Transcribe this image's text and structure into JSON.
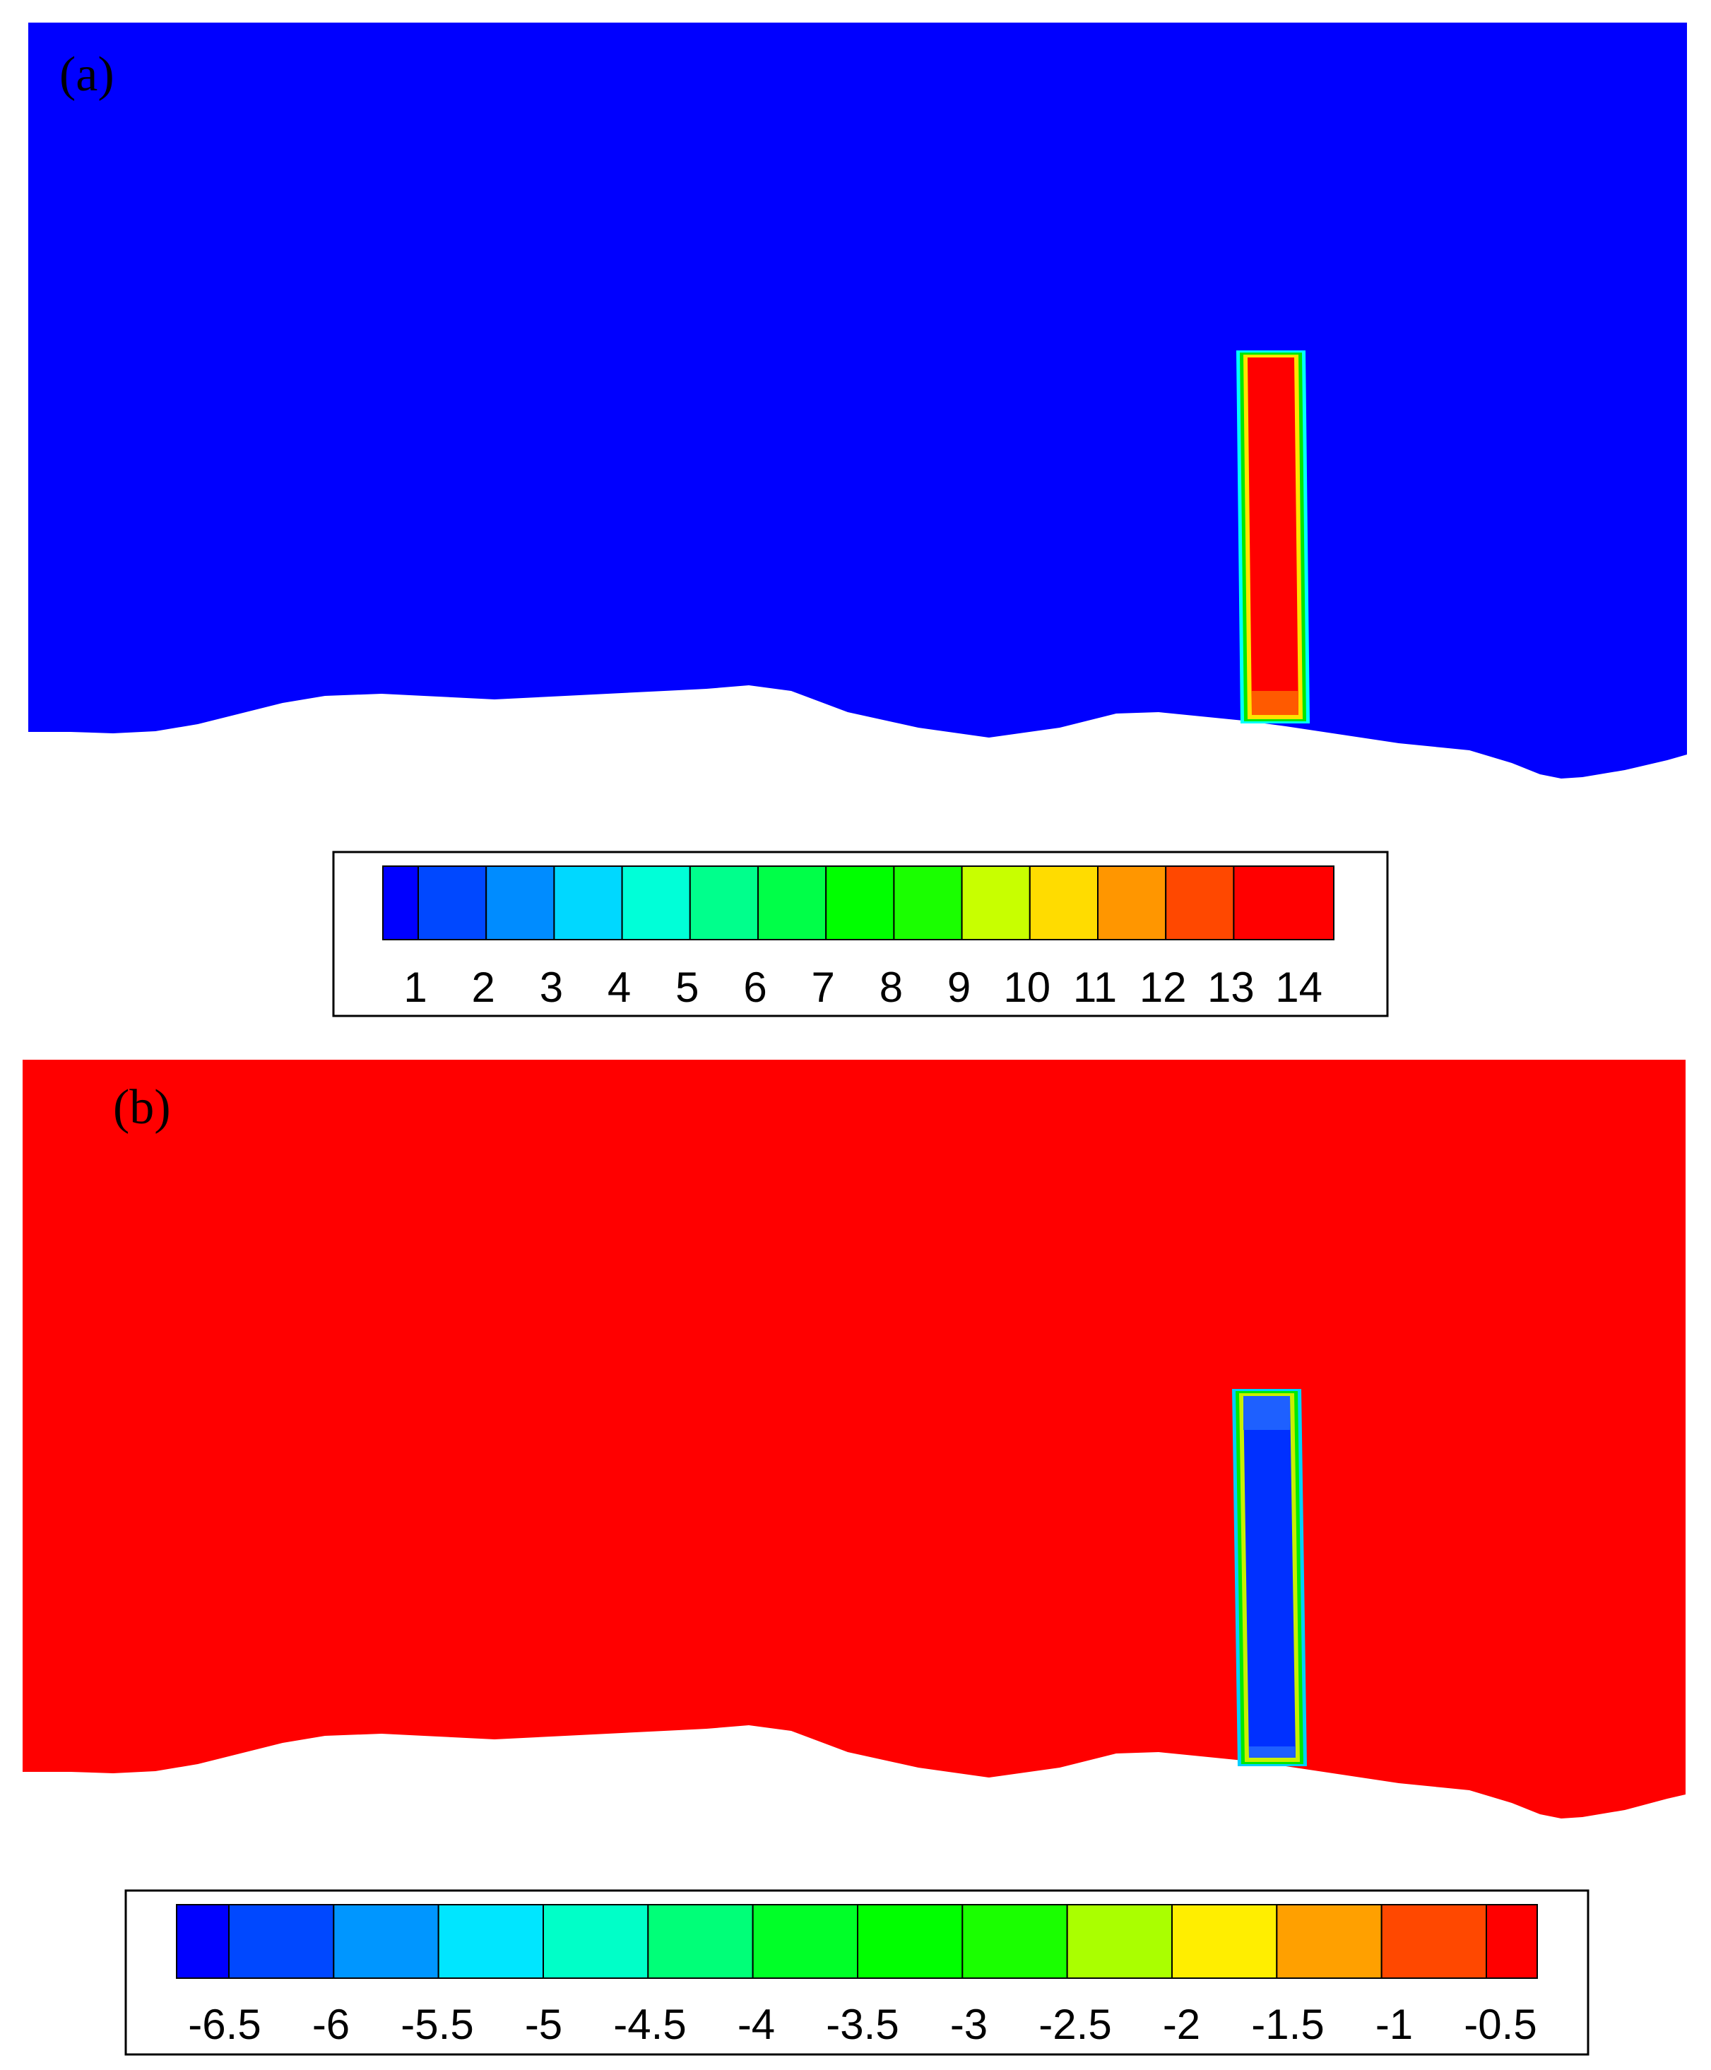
{
  "figure": {
    "panels": [
      {
        "label": "(a)",
        "field_color": "#0000ff",
        "pillar_color": "#ff0000",
        "pillar_rim_colors": [
          "#ffe400",
          "#00e800",
          "#00ffff"
        ],
        "pillar_base_color": "#ff5a00"
      },
      {
        "label": "(b)",
        "field_color": "#ff0000",
        "pillar_color": "#0030ff",
        "pillar_rim_colors": [
          "#c8f000",
          "#00e800",
          "#00d0ff"
        ],
        "pillar_base_color": "#1e60ff"
      }
    ]
  },
  "chart_data": [
    {
      "type": "heatmap",
      "title": "(a)",
      "colorbar": {
        "ticks": [
          "1",
          "2",
          "3",
          "4",
          "5",
          "6",
          "7",
          "8",
          "9",
          "10",
          "11",
          "12",
          "13",
          "14"
        ],
        "colors": [
          "#0000ff",
          "#0048ff",
          "#008cff",
          "#00d8ff",
          "#00ffd8",
          "#00ff8c",
          "#00ff48",
          "#00ff00",
          "#1aff00",
          "#c8ff00",
          "#ffdc00",
          "#ff9600",
          "#ff4800",
          "#ff0000"
        ]
      },
      "field_value": 1,
      "pillar_value": 14
    },
    {
      "type": "heatmap",
      "title": "(b)",
      "colorbar": {
        "ticks": [
          "-6.5",
          "-6",
          "-5.5",
          "-5",
          "-4.5",
          "-4",
          "-3.5",
          "-3",
          "-2.5",
          "-2",
          "-1.5",
          "-1",
          "-0.5"
        ],
        "colors": [
          "#0000ff",
          "#0048ff",
          "#0096ff",
          "#00e6ff",
          "#00ffc8",
          "#00ff78",
          "#00ff28",
          "#00ff00",
          "#1aff00",
          "#aaff00",
          "#ffee00",
          "#ffa000",
          "#ff4800",
          "#ff0000"
        ]
      },
      "field_value": -0.5,
      "pillar_value": -6.5
    }
  ]
}
